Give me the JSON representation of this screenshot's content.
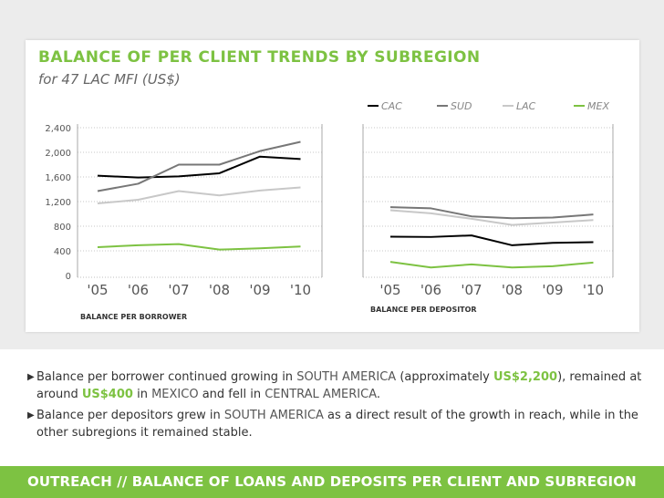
{
  "header": {
    "title": "BALANCE OF PER CLIENT TRENDS BY SUBREGION",
    "subtitle": "for 47 LAC MFI (US$)"
  },
  "chart_data": [
    {
      "type": "line",
      "panel_label": "BALANCE PER BORROWER",
      "categories": [
        "'05",
        "'06",
        "'07",
        "'08",
        "'09",
        "'10"
      ],
      "yticks": [
        "0",
        "400",
        "800",
        "1,200",
        "1,600",
        "2,000",
        "2,400"
      ],
      "ylim": [
        0,
        2400
      ],
      "grid": "horizontal-dotted",
      "series": [
        {
          "name": "CAC",
          "color": "#000000",
          "values": [
            1620,
            1590,
            1610,
            1660,
            1930,
            1890
          ]
        },
        {
          "name": "SUD",
          "color": "#777777",
          "values": [
            1370,
            1490,
            1800,
            1800,
            2020,
            2170
          ]
        },
        {
          "name": "LAC",
          "color": "#c8c8c8",
          "values": [
            1170,
            1230,
            1370,
            1300,
            1380,
            1430
          ]
        },
        {
          "name": "MEX",
          "color": "#7dc242",
          "values": [
            460,
            490,
            510,
            420,
            440,
            470
          ]
        }
      ]
    },
    {
      "type": "line",
      "panel_label": "BALANCE PER DEPOSITOR",
      "categories": [
        "'05",
        "'06",
        "'07",
        "'08",
        "'09",
        "'10"
      ],
      "ylim": [
        0,
        2400
      ],
      "grid": "horizontal-dotted",
      "series": [
        {
          "name": "CAC",
          "color": "#000000",
          "values": [
            630,
            625,
            650,
            490,
            530,
            540
          ]
        },
        {
          "name": "SUD",
          "color": "#777777",
          "values": [
            1110,
            1090,
            960,
            930,
            940,
            990
          ]
        },
        {
          "name": "LAC",
          "color": "#c8c8c8",
          "values": [
            1060,
            1010,
            920,
            820,
            860,
            900
          ]
        },
        {
          "name": "MEX",
          "color": "#7dc242",
          "values": [
            220,
            130,
            180,
            130,
            150,
            210
          ]
        }
      ]
    }
  ],
  "legend": {
    "placement": "top-right",
    "items": [
      {
        "label": "CAC",
        "color": "#000000"
      },
      {
        "label": "SUD",
        "color": "#777777"
      },
      {
        "label": "LAC",
        "color": "#c8c8c8"
      },
      {
        "label": "MEX",
        "color": "#7dc242"
      }
    ]
  },
  "notes": [
    {
      "p1": "Balance per borrower continued growing in ",
      "region1": "SOUTH AMERICA",
      "p2": " (approximately ",
      "value1": "US$2,200",
      "p3": "), remained at around ",
      "value2": "US$400",
      "p4": " in ",
      "region2": "MEXICO",
      "p5": " and fell in ",
      "region3": "CENTRAL AMERICA",
      "p6": "."
    },
    {
      "p1": "Balance per depositors grew in ",
      "region1": "SOUTH AMERICA",
      "p2": " as a direct result of the growth in reach, while in the other subregions it remained stable."
    }
  ],
  "footer": {
    "text": "OUTREACH  // BALANCE OF LOANS AND DEPOSITS PER CLIENT AND SUBREGION"
  },
  "colors": {
    "accent": "#7dc242",
    "panel_bg": "#ececec"
  }
}
